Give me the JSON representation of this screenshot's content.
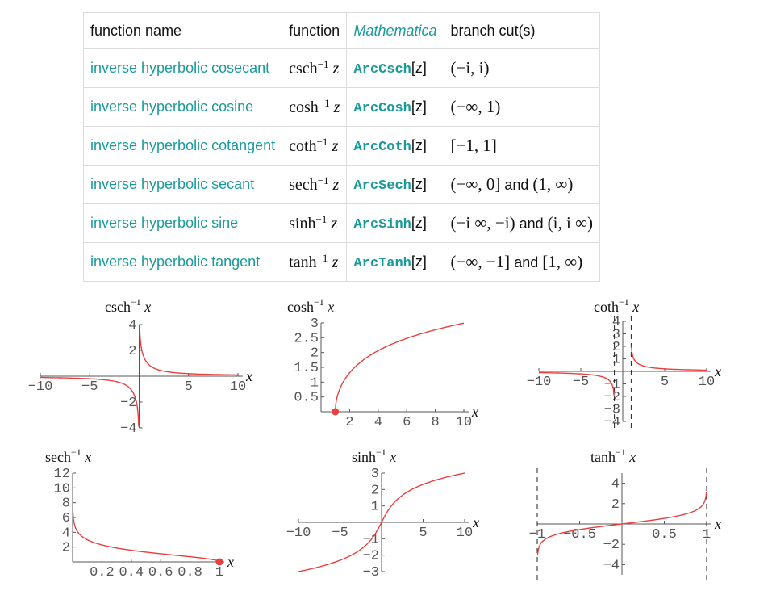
{
  "table": {
    "headers": [
      "function name",
      "function",
      "Mathematica",
      "branch cut(s)"
    ],
    "and_word": "and",
    "rows": [
      {
        "name": "inverse hyperbolic cosecant",
        "fn": "csch",
        "mma_fn": "ArcCsch",
        "mma_arg": "[z]",
        "cut1": "(−i, i)",
        "cut2": ""
      },
      {
        "name": "inverse hyperbolic cosine",
        "fn": "cosh",
        "mma_fn": "ArcCosh",
        "mma_arg": "[z]",
        "cut1": "(−∞, 1)",
        "cut2": ""
      },
      {
        "name": "inverse hyperbolic cotangent",
        "fn": "coth",
        "mma_fn": "ArcCoth",
        "mma_arg": "[z]",
        "cut1": "[−1, 1]",
        "cut2": ""
      },
      {
        "name": "inverse hyperbolic secant",
        "fn": "sech",
        "mma_fn": "ArcSech",
        "mma_arg": "[z]",
        "cut1": "(−∞, 0]",
        "cut2": "(1, ∞)"
      },
      {
        "name": "inverse hyperbolic sine",
        "fn": "sinh",
        "mma_fn": "ArcSinh",
        "mma_arg": "[z]",
        "cut1": "(−i ∞, −i)",
        "cut2": "(i, i ∞)"
      },
      {
        "name": "inverse hyperbolic tangent",
        "fn": "tanh",
        "mma_fn": "ArcTanh",
        "mma_arg": "[z]",
        "cut1": "(−∞, −1]",
        "cut2": "[1, ∞)"
      }
    ],
    "sup": "−1",
    "var": "z"
  },
  "colors": {
    "curve": "#e8403f",
    "teal": "#1a9a9a",
    "axis": "#555555"
  },
  "chart_data": [
    {
      "type": "line",
      "fn": "csch",
      "title_fn": "csch",
      "title_sup": "−1",
      "title_var": "x",
      "xlabel": "x",
      "xlim": [
        -10,
        10
      ],
      "ylim": [
        -4,
        4
      ],
      "xticks": [
        -10,
        -5,
        5,
        10
      ],
      "xtick_labels": [
        "−10",
        "−5",
        "5",
        "10"
      ],
      "yticks": [
        -4,
        -2,
        2,
        4
      ],
      "ytick_labels": [
        "−4",
        "−2",
        "2",
        "4"
      ]
    },
    {
      "type": "line",
      "fn": "cosh",
      "title_fn": "cosh",
      "title_sup": "−1",
      "title_var": "x",
      "xlabel": "x",
      "xlim": [
        0,
        10
      ],
      "ylim": [
        0,
        3
      ],
      "xticks": [
        2,
        4,
        6,
        8,
        10
      ],
      "xtick_labels": [
        "2",
        "4",
        "6",
        "8",
        "10"
      ],
      "yticks": [
        0.5,
        1,
        1.5,
        2,
        2.5,
        3
      ],
      "ytick_labels": [
        "0.5",
        "1",
        "1.5",
        "2",
        "2.5",
        "3"
      ],
      "point": [
        1,
        0
      ]
    },
    {
      "type": "line",
      "fn": "coth",
      "title_fn": "coth",
      "title_sup": "−1",
      "title_var": "x",
      "xlabel": "x",
      "xlim": [
        -10,
        10
      ],
      "ylim": [
        -4,
        4
      ],
      "xticks": [
        -10,
        -5,
        5,
        10
      ],
      "xtick_labels": [
        "−10",
        "−5",
        "5",
        "10"
      ],
      "yticks": [
        -4,
        -3,
        -2,
        -1,
        1,
        2,
        3,
        4
      ],
      "ytick_labels": [
        "−4",
        "−3",
        "−2",
        "−1",
        "1",
        "2",
        "3",
        "4"
      ],
      "asymptotes": [
        -1,
        1
      ]
    },
    {
      "type": "line",
      "fn": "sech",
      "title_fn": "sech",
      "title_sup": "−1",
      "title_var": "x",
      "xlabel": "x",
      "xlim": [
        0,
        1
      ],
      "ylim": [
        0,
        12
      ],
      "xticks": [
        0.2,
        0.4,
        0.6,
        0.8,
        1
      ],
      "xtick_labels": [
        "0.2",
        "0.4",
        "0.6",
        "0.8",
        "1"
      ],
      "yticks": [
        2,
        4,
        6,
        8,
        10,
        12
      ],
      "ytick_labels": [
        "2",
        "4",
        "6",
        "8",
        "10",
        "12"
      ],
      "point": [
        1,
        0
      ]
    },
    {
      "type": "line",
      "fn": "sinh",
      "title_fn": "sinh",
      "title_sup": "−1",
      "title_var": "x",
      "xlabel": "x",
      "xlim": [
        -10,
        10
      ],
      "ylim": [
        -3,
        3
      ],
      "xticks": [
        -10,
        -5,
        5,
        10
      ],
      "xtick_labels": [
        "−10",
        "−5",
        "5",
        "10"
      ],
      "yticks": [
        -3,
        -2,
        -1,
        1,
        2,
        3
      ],
      "ytick_labels": [
        "−3",
        "−2",
        "−1",
        "1",
        "2",
        "3"
      ]
    },
    {
      "type": "line",
      "fn": "tanh",
      "title_fn": "tanh",
      "title_sup": "−1",
      "title_var": "x",
      "xlabel": "x",
      "xlim": [
        -1,
        1
      ],
      "ylim": [
        -5,
        5
      ],
      "xticks": [
        -1,
        -0.5,
        0.5,
        1
      ],
      "xtick_labels": [
        "−1",
        "−0.5",
        "0.5",
        "1"
      ],
      "yticks": [
        -4,
        -2,
        2,
        4
      ],
      "ytick_labels": [
        "−4",
        "−2",
        "2",
        "4"
      ],
      "asymptotes": [
        -1,
        1
      ]
    }
  ]
}
